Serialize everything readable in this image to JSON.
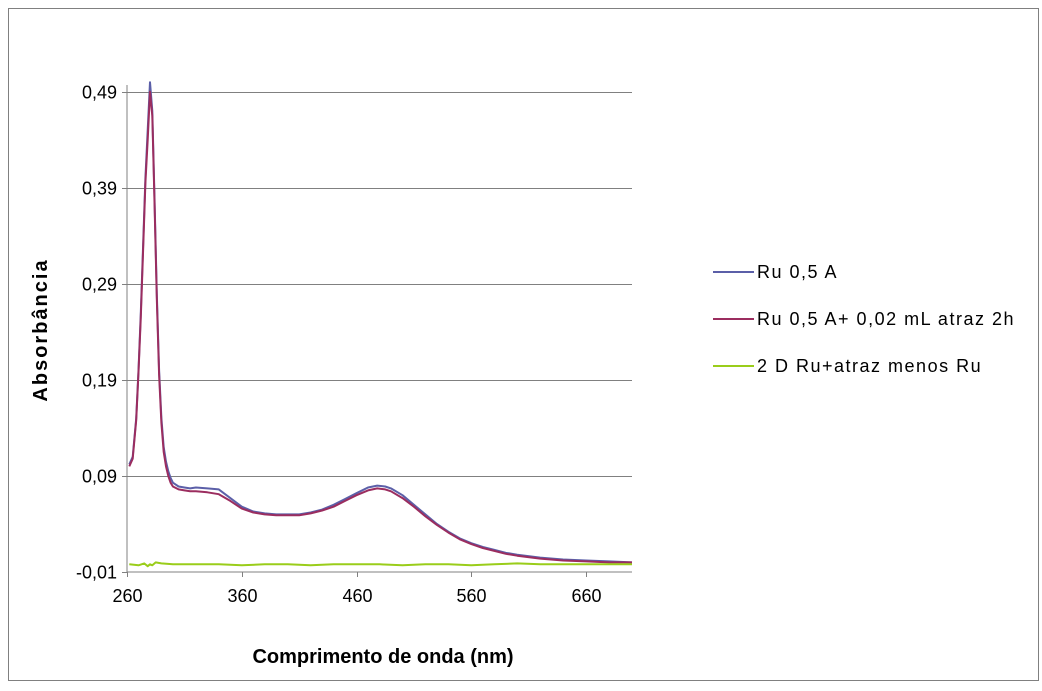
{
  "chart_data": {
    "type": "line",
    "title": "",
    "xlabel": "Comprimento de onda (nm)",
    "ylabel": "Absorbância",
    "xlim": [
      260,
      700
    ],
    "ylim": [
      -0.01,
      0.52
    ],
    "x_ticks": [
      260,
      360,
      460,
      560,
      660
    ],
    "x_tick_labels": [
      "260",
      "360",
      "460",
      "560",
      "660"
    ],
    "y_ticks": [
      -0.01,
      0.09,
      0.19,
      0.29,
      0.39,
      0.49
    ],
    "y_tick_labels": [
      "-0,01",
      "0,09",
      "0,19",
      "0,29",
      "0,39",
      "0,49"
    ],
    "grid": "horizontal",
    "legend_position": "right",
    "series": [
      {
        "name": "Ru 0,5 A",
        "color": "#5B5FA8",
        "x": [
          262,
          265,
          268,
          270,
          272,
          274,
          276,
          278,
          280,
          282,
          284,
          286,
          288,
          290,
          292,
          294,
          296,
          298,
          300,
          305,
          310,
          315,
          320,
          330,
          340,
          350,
          360,
          370,
          380,
          390,
          400,
          410,
          420,
          430,
          440,
          450,
          460,
          470,
          478,
          485,
          490,
          500,
          510,
          520,
          530,
          540,
          550,
          560,
          570,
          580,
          590,
          600,
          620,
          640,
          660,
          680,
          700
        ],
        "y": [
          0.102,
          0.11,
          0.15,
          0.2,
          0.26,
          0.33,
          0.4,
          0.45,
          0.5,
          0.47,
          0.38,
          0.28,
          0.2,
          0.15,
          0.12,
          0.105,
          0.095,
          0.088,
          0.083,
          0.079,
          0.078,
          0.077,
          0.078,
          0.077,
          0.076,
          0.067,
          0.058,
          0.053,
          0.051,
          0.05,
          0.05,
          0.05,
          0.052,
          0.055,
          0.06,
          0.066,
          0.072,
          0.078,
          0.08,
          0.079,
          0.077,
          0.07,
          0.06,
          0.05,
          0.04,
          0.032,
          0.025,
          0.02,
          0.016,
          0.013,
          0.01,
          0.008,
          0.005,
          0.003,
          0.002,
          0.001,
          0.0
        ]
      },
      {
        "name": "Ru 0,5 A+ 0,02 mL atraz 2h",
        "color": "#9B2D5F",
        "x": [
          262,
          265,
          268,
          270,
          272,
          274,
          276,
          278,
          280,
          282,
          284,
          286,
          288,
          290,
          292,
          294,
          296,
          298,
          300,
          305,
          310,
          315,
          320,
          330,
          340,
          350,
          360,
          370,
          380,
          390,
          400,
          410,
          420,
          430,
          440,
          450,
          460,
          470,
          478,
          485,
          490,
          500,
          510,
          520,
          530,
          540,
          550,
          560,
          570,
          580,
          590,
          600,
          620,
          640,
          660,
          680,
          700
        ],
        "y": [
          0.1,
          0.108,
          0.148,
          0.198,
          0.255,
          0.325,
          0.395,
          0.44,
          0.49,
          0.465,
          0.375,
          0.275,
          0.195,
          0.145,
          0.115,
          0.1,
          0.09,
          0.083,
          0.079,
          0.076,
          0.075,
          0.074,
          0.074,
          0.073,
          0.071,
          0.064,
          0.056,
          0.052,
          0.05,
          0.049,
          0.049,
          0.049,
          0.051,
          0.054,
          0.058,
          0.064,
          0.07,
          0.075,
          0.077,
          0.076,
          0.074,
          0.067,
          0.058,
          0.048,
          0.039,
          0.031,
          0.024,
          0.019,
          0.015,
          0.012,
          0.009,
          0.007,
          0.004,
          0.002,
          0.001,
          0.0,
          0.0
        ]
      },
      {
        "name": "2 D Ru+atraz menos Ru",
        "color": "#9ACD1A",
        "x": [
          262,
          270,
          275,
          278,
          280,
          282,
          285,
          290,
          300,
          320,
          340,
          360,
          380,
          400,
          420,
          440,
          460,
          480,
          500,
          520,
          540,
          560,
          580,
          600,
          620,
          640,
          660,
          680,
          700
        ],
        "y": [
          -0.002,
          -0.003,
          -0.001,
          -0.004,
          -0.002,
          -0.003,
          0.0,
          -0.001,
          -0.002,
          -0.002,
          -0.002,
          -0.003,
          -0.002,
          -0.002,
          -0.003,
          -0.002,
          -0.002,
          -0.002,
          -0.003,
          -0.002,
          -0.002,
          -0.003,
          -0.002,
          -0.001,
          -0.002,
          -0.002,
          -0.002,
          -0.002,
          -0.002
        ]
      }
    ]
  }
}
